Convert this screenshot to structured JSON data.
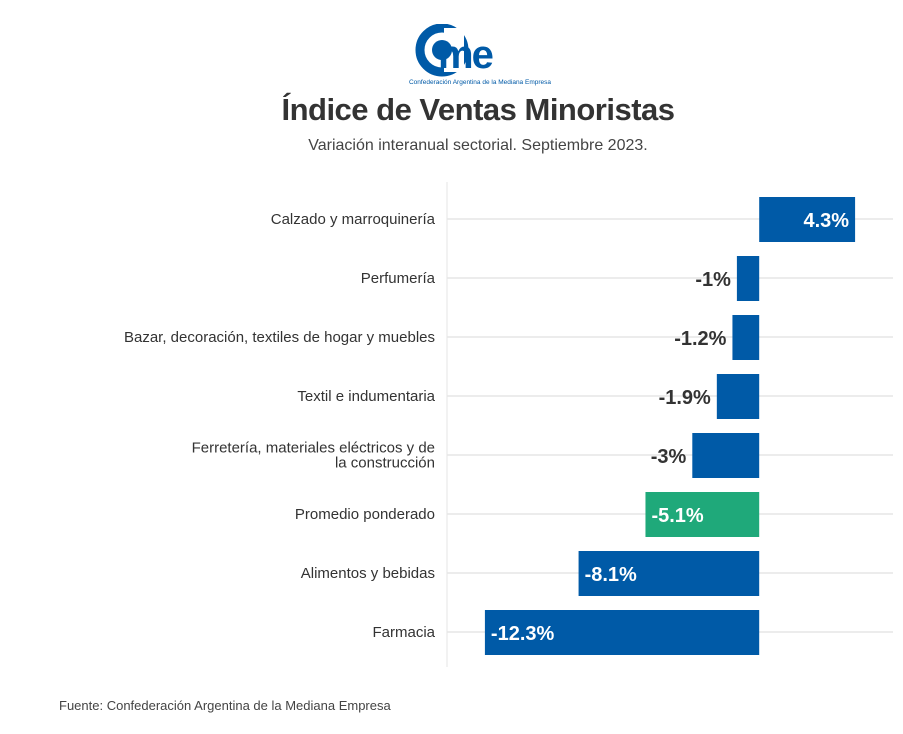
{
  "logo": {
    "text": "came",
    "tagline": "Confederación Argentina de la Mediana Empresa"
  },
  "chart_data": {
    "type": "bar",
    "orientation": "horizontal",
    "title": "Índice de Ventas Minoristas",
    "subtitle": "Variación interanual sectorial. Septiembre 2023.",
    "categories": [
      "Calzado y marroquinería",
      "Perfumería",
      "Bazar, decoración, textiles de hogar y muebles",
      "Textil e indumentaria",
      "Ferretería, materiales eléctricos y de la construcción",
      "Promedio ponderado",
      "Alimentos y bebidas",
      "Farmacia"
    ],
    "values": [
      4.3,
      -1,
      -1.2,
      -1.9,
      -3,
      -5.1,
      -8.1,
      -12.3
    ],
    "labels": [
      "4.3%",
      "-1%",
      "-1.2%",
      "-1.9%",
      "-3%",
      "-5.1%",
      "-8.1%",
      "-12.3%"
    ],
    "highlight_index": 5,
    "xlim": [
      -14,
      6
    ],
    "grid": true,
    "colors": {
      "bar": "#005aa7",
      "highlight": "#1fa97a",
      "grid": "#e6e6e6",
      "label": "#333333"
    }
  },
  "source": "Fuente: Confederación Argentina de la Mediana Empresa"
}
